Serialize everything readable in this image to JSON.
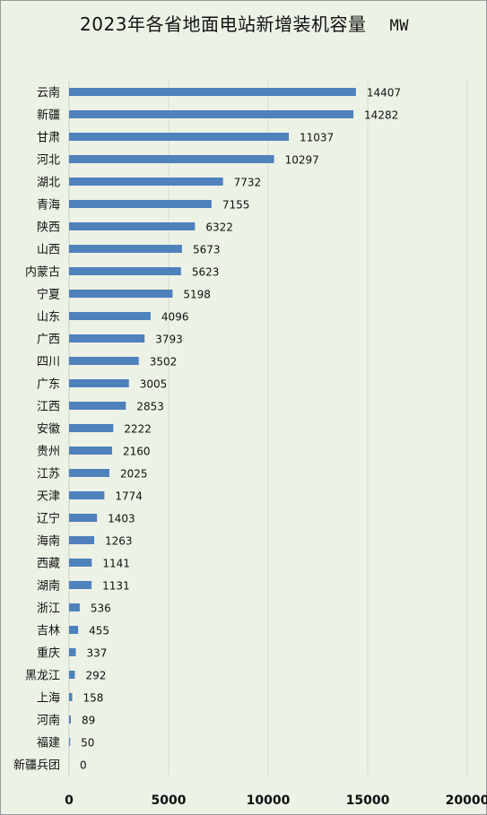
{
  "chart_data": {
    "type": "bar",
    "orientation": "horizontal",
    "title": "2023年各省地面电站新增装机容量",
    "unit": "MW",
    "categories": [
      "云南",
      "新疆",
      "甘肃",
      "河北",
      "湖北",
      "青海",
      "陕西",
      "山西",
      "内蒙古",
      "宁夏",
      "山东",
      "广西",
      "四川",
      "广东",
      "江西",
      "安徽",
      "贵州",
      "江苏",
      "天津",
      "辽宁",
      "海南",
      "西藏",
      "湖南",
      "浙江",
      "吉林",
      "重庆",
      "黑龙江",
      "上海",
      "河南",
      "福建",
      "新疆兵团"
    ],
    "values": [
      14407,
      14282,
      11037,
      10297,
      7732,
      7155,
      6322,
      5673,
      5623,
      5198,
      4096,
      3793,
      3502,
      3005,
      2853,
      2222,
      2160,
      2025,
      1774,
      1403,
      1263,
      1141,
      1131,
      536,
      455,
      337,
      292,
      158,
      89,
      50,
      0
    ],
    "xlim": [
      0,
      20000
    ],
    "xticks": [
      "0",
      "5000",
      "10000",
      "15000",
      "20000"
    ],
    "bar_color": "#4f81bd",
    "grid": true,
    "legend": "none"
  }
}
